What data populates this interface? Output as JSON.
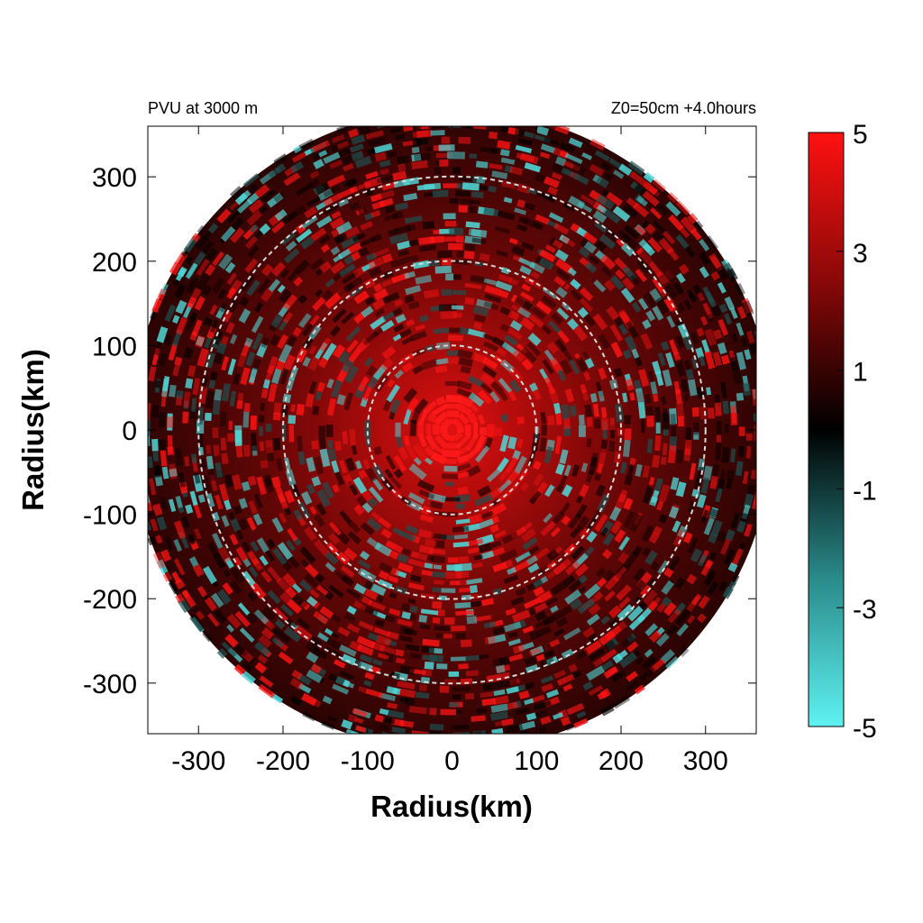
{
  "chart_data": {
    "type": "heatmap",
    "title_left": "PVU at  3000 m",
    "title_right": "Z0=50cm  +4.0hours",
    "xlabel": "Radius(km)",
    "ylabel": "Radius(km)",
    "xlim": [
      -360,
      360
    ],
    "ylim": [
      -360,
      360
    ],
    "x_ticks": [
      "-300",
      "-200",
      "-100",
      "0",
      "100",
      "200",
      "300"
    ],
    "y_ticks": [
      "300",
      "200",
      "100",
      "0",
      "-100",
      "-200",
      "-300"
    ],
    "x_tick_values": [
      -300,
      -200,
      -100,
      0,
      100,
      200,
      300
    ],
    "y_tick_values": [
      300,
      200,
      100,
      0,
      -100,
      -200,
      -300
    ],
    "range_rings_km": [
      100,
      200,
      300
    ],
    "domain_radius_km": 380,
    "colorbar": {
      "min": -5,
      "max": 5,
      "ticks": [
        "5",
        "3",
        "1",
        "-1",
        "-3",
        "-5"
      ],
      "tick_values": [
        5,
        3,
        1,
        -1,
        -3,
        -5
      ],
      "colors": {
        "low": "#5ff2f2",
        "mid": "#000000",
        "high": "#ff1111"
      }
    },
    "grid": false
  }
}
